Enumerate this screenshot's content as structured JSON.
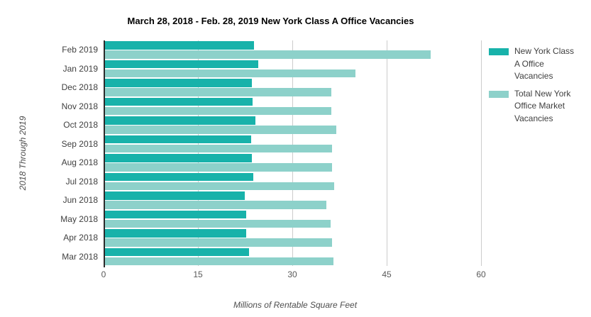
{
  "chart_data": {
    "type": "bar",
    "orientation": "horizontal",
    "title": "March 28, 2018 - Feb. 28, 2019 New York Class A Office Vacancies",
    "xlabel": "Millions of Rentable Square Feet",
    "ylabel": "2018 Through 2019",
    "categories": [
      "Feb 2019",
      "Jan 2019",
      "Dec 2018",
      "Nov 2018",
      "Oct 2018",
      "Sep 2018",
      "Aug 2018",
      "Jul 2018",
      "Jun 2018",
      "May 2018",
      "Apr 2018",
      "Mar 2018"
    ],
    "series": [
      {
        "name": "New York Class A Office Vacancies",
        "color": "#18B2AA",
        "values": [
          23.9,
          24.6,
          23.6,
          23.7,
          24.1,
          23.5,
          23.6,
          23.8,
          22.4,
          22.7,
          22.7,
          23.1
        ]
      },
      {
        "name": "Total New York Office Market Vacancies",
        "color": "#8DD1CA",
        "values": [
          52.0,
          40.0,
          36.2,
          36.2,
          37.0,
          36.3,
          36.3,
          36.6,
          35.4,
          36.1,
          36.3,
          36.5
        ]
      }
    ],
    "xticks": [
      0,
      15,
      30,
      45,
      60
    ],
    "xlim": [
      0,
      60
    ],
    "grid": "vertical",
    "legend_position": "right",
    "units": "millions of rentable square feet"
  },
  "legend": {
    "items": [
      {
        "label": "New York Class A Office Vacancies"
      },
      {
        "label": "Total New York Office Market Vacancies"
      }
    ]
  },
  "colors": {
    "series_1": "#18B2AA",
    "series_2": "#8DD1CA",
    "gridline": "#cccccc",
    "axis_line": "#2b2b2b",
    "tick_label": "#595959",
    "title": "#000000",
    "category_label": "#404040"
  }
}
